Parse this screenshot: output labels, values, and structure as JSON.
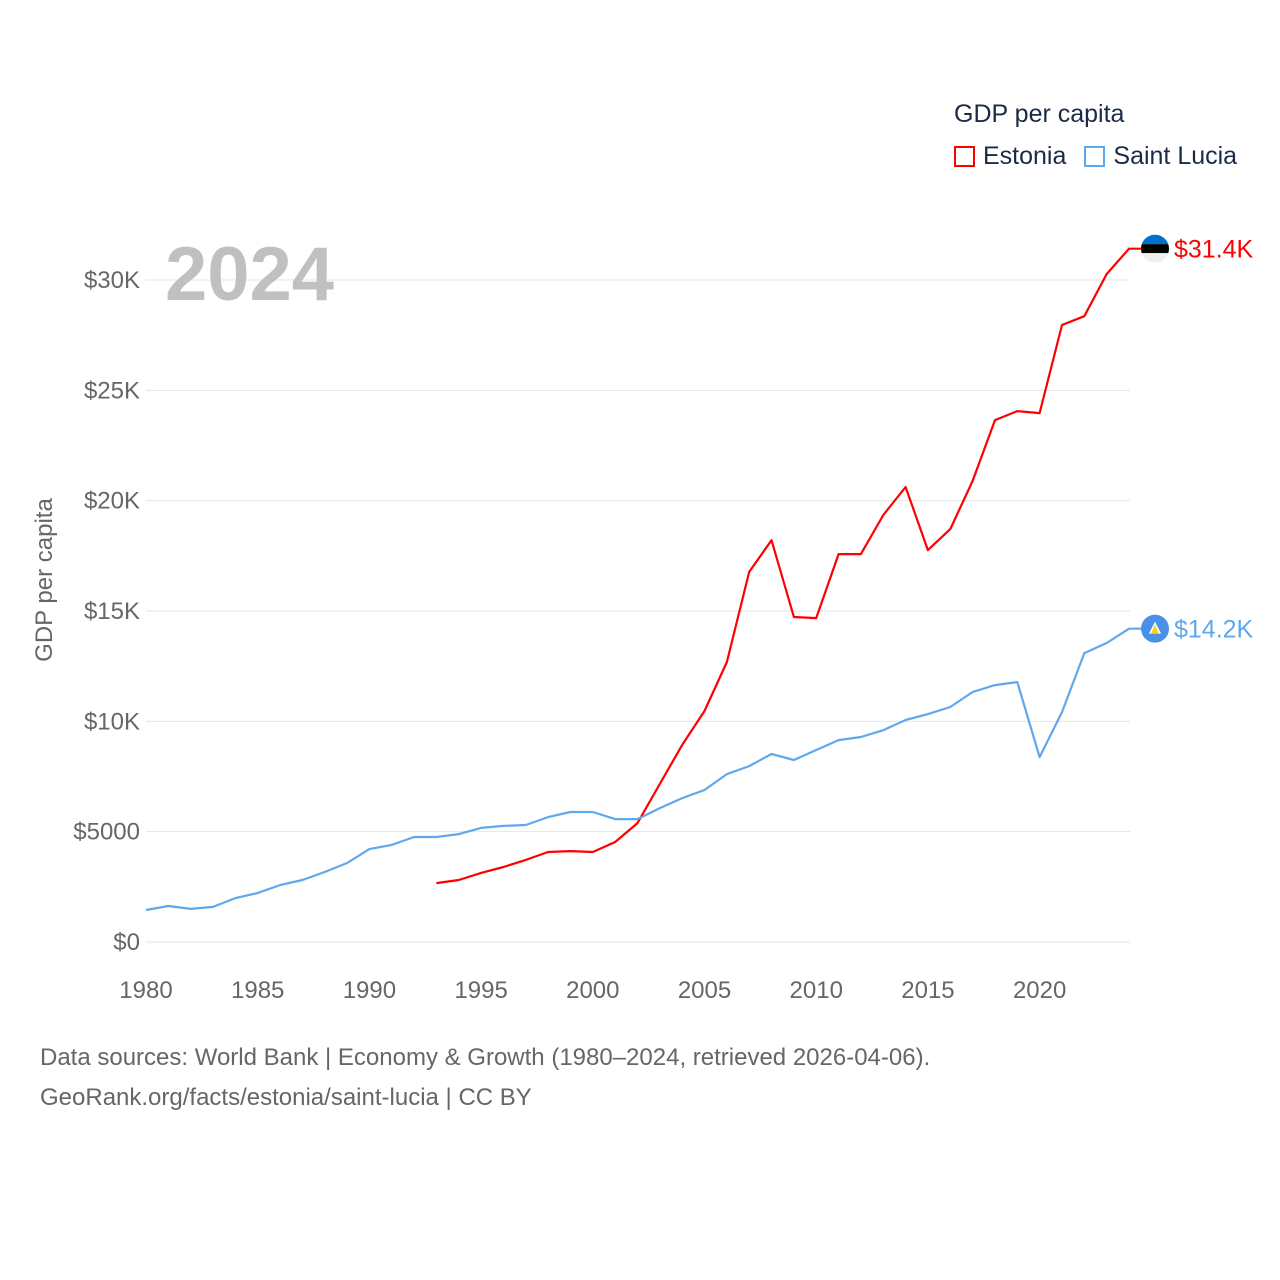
{
  "chart_data": {
    "type": "line",
    "title": "GDP per capita",
    "ylabel": "GDP per capita",
    "xlabel": "",
    "year_label": "2024",
    "xlim": [
      1980,
      2024
    ],
    "ylim": [
      0,
      30000
    ],
    "x_ticks": [
      1980,
      1985,
      1990,
      1995,
      2000,
      2005,
      2010,
      2015,
      2020
    ],
    "x_tick_labels": [
      "1980",
      "1985",
      "1990",
      "1995",
      "2000",
      "2005",
      "2010",
      "2015",
      "2020"
    ],
    "y_ticks": [
      0,
      5000,
      10000,
      15000,
      20000,
      25000,
      30000
    ],
    "y_tick_labels": [
      "$0",
      "$5000",
      "$10K",
      "$15K",
      "$20K",
      "$25K",
      "$30K"
    ],
    "grid": true,
    "legend_placement": "top-right",
    "series": [
      {
        "name": "Estonia",
        "color": "#ff0000",
        "end_label": "$31.4K",
        "flag_icon": "estonia-flag",
        "x": [
          1993,
          1994,
          1995,
          1996,
          1997,
          1998,
          1999,
          2000,
          2001,
          2002,
          2003,
          2004,
          2005,
          2006,
          2007,
          2008,
          2009,
          2010,
          2011,
          2012,
          2013,
          2014,
          2015,
          2016,
          2017,
          2018,
          2019,
          2020,
          2021,
          2022,
          2023,
          2024
        ],
        "values": [
          2670,
          2810,
          3130,
          3400,
          3720,
          4080,
          4120,
          4080,
          4530,
          5390,
          7160,
          8930,
          10470,
          12690,
          16770,
          18210,
          14730,
          14680,
          17580,
          17580,
          19350,
          20620,
          17760,
          18710,
          20890,
          23650,
          24060,
          23970,
          27960,
          28360,
          30270,
          31420
        ]
      },
      {
        "name": "Saint Lucia",
        "color": "#5ea8ee",
        "end_label": "$14.2K",
        "flag_icon": "saint-lucia-flag",
        "x": [
          1980,
          1981,
          1982,
          1983,
          1984,
          1985,
          1986,
          1987,
          1988,
          1989,
          1990,
          1991,
          1992,
          1993,
          1994,
          1995,
          1996,
          1997,
          1998,
          1999,
          2000,
          2001,
          2002,
          2003,
          2004,
          2005,
          2006,
          2007,
          2008,
          2009,
          2010,
          2011,
          2012,
          2013,
          2014,
          2015,
          2016,
          2017,
          2018,
          2019,
          2020,
          2021,
          2022,
          2023,
          2024
        ],
        "values": [
          1450,
          1630,
          1500,
          1590,
          1990,
          2220,
          2580,
          2810,
          3170,
          3580,
          4210,
          4400,
          4760,
          4760,
          4890,
          5170,
          5260,
          5300,
          5660,
          5890,
          5890,
          5570,
          5570,
          6070,
          6520,
          6890,
          7610,
          7970,
          8520,
          8250,
          8700,
          9150,
          9290,
          9600,
          10060,
          10330,
          10650,
          11330,
          11640,
          11780,
          8380,
          10420,
          13090,
          13550,
          14200
        ]
      }
    ]
  },
  "footer": {
    "line1": "Data sources: World Bank | Economy & Growth (1980–2024, retrieved 2026-04-06).",
    "line2": "GeoRank.org/facts/estonia/saint-lucia | CC BY"
  }
}
